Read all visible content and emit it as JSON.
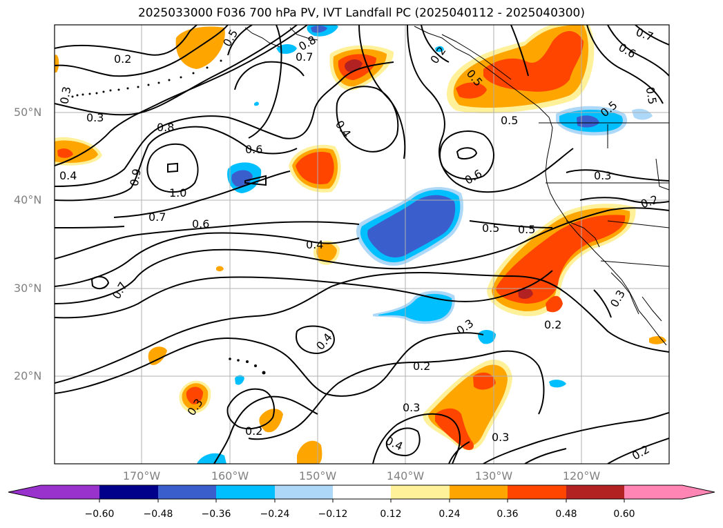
{
  "title": "2025033000 F036 700 hPa PV, IVT Landfall PC (2025040112 - 2025040300)",
  "map": {
    "lat_labels": [
      "50°N",
      "40°N",
      "30°N",
      "20°N"
    ],
    "lon_labels": [
      "170°W",
      "160°W",
      "150°W",
      "140°W",
      "130°W",
      "120°W"
    ],
    "contour_labels": [
      {
        "text": "0.2"
      },
      {
        "text": "0.3"
      },
      {
        "text": "0.4"
      },
      {
        "text": "0.8"
      },
      {
        "text": "0.9"
      },
      {
        "text": "1.0"
      },
      {
        "text": "0.7"
      },
      {
        "text": "0.6"
      },
      {
        "text": "0.6"
      },
      {
        "text": "0.4"
      },
      {
        "text": "0.6"
      },
      {
        "text": "0.5"
      },
      {
        "text": "0.5"
      },
      {
        "text": "0.4"
      },
      {
        "text": "0.7"
      },
      {
        "text": "0.3"
      },
      {
        "text": "0.4"
      },
      {
        "text": "0.2"
      },
      {
        "text": "0.3"
      },
      {
        "text": "0.2"
      },
      {
        "text": "0.3"
      },
      {
        "text": "0.4"
      },
      {
        "text": "0.3"
      },
      {
        "text": "0.2"
      },
      {
        "text": "0.2"
      },
      {
        "text": "0.3"
      },
      {
        "text": "0.5"
      },
      {
        "text": "0.7"
      },
      {
        "text": "0.6"
      },
      {
        "text": "0.5"
      },
      {
        "text": "0.5"
      },
      {
        "text": "0.3"
      },
      {
        "text": "0.2"
      },
      {
        "text": "0.3"
      },
      {
        "text": "0.2"
      },
      {
        "text": "0.8"
      },
      {
        "text": "0.7"
      },
      {
        "text": "0.5"
      },
      {
        "text": "0.5"
      }
    ]
  },
  "colorbar": {
    "colors": [
      "#9932cc",
      "#00008b",
      "#3a5fcd",
      "#00bfff",
      "#add8f7",
      "#ffffff",
      "#fff09a",
      "#ffa500",
      "#ff4500",
      "#b22222",
      "#ff85b5"
    ],
    "ticks": [
      "−0.60",
      "−0.48",
      "−0.36",
      "−0.24",
      "−0.12",
      "0.12",
      "0.24",
      "0.36",
      "0.48",
      "0.60"
    ]
  }
}
